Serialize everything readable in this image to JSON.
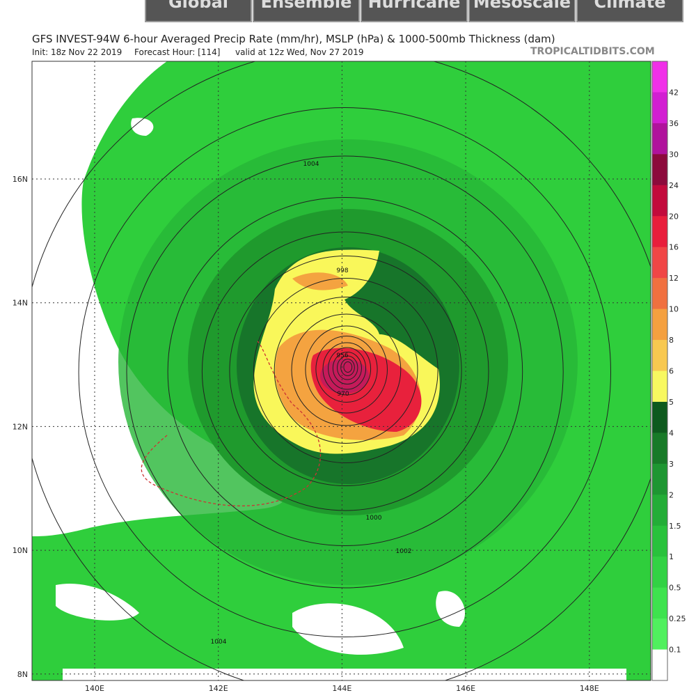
{
  "nav": {
    "tabs": [
      "Global",
      "Ensemble",
      "Hurricane",
      "Mesoscale",
      "Climate"
    ]
  },
  "header": {
    "title": "GFS INVEST-94W 6-hour Averaged Precip Rate (mm/hr), MSLP (hPa) & 1000-500mb Thickness (dam)",
    "init": "Init: 18z Nov 22 2019",
    "forecast_hour": "Forecast Hour: [114]",
    "valid": "valid at 12z Wed, Nov 27 2019",
    "site": "TROPICALTIDBITS.COM"
  },
  "map": {
    "lat_labels": [
      "16N",
      "14N",
      "12N",
      "10N",
      "8N"
    ],
    "lon_labels": [
      "140E",
      "142E",
      "144E",
      "146E",
      "148E"
    ],
    "contour_labels": [
      "1004",
      "998",
      "956",
      "970",
      "1000",
      "1002",
      "1004"
    ]
  },
  "legend": {
    "labels": [
      "42",
      "36",
      "30",
      "24",
      "20",
      "16",
      "12",
      "10",
      "8",
      "6",
      "5",
      "4",
      "3",
      "2",
      "1.5",
      "1",
      "0.5",
      "0.25",
      "0.1"
    ]
  }
}
